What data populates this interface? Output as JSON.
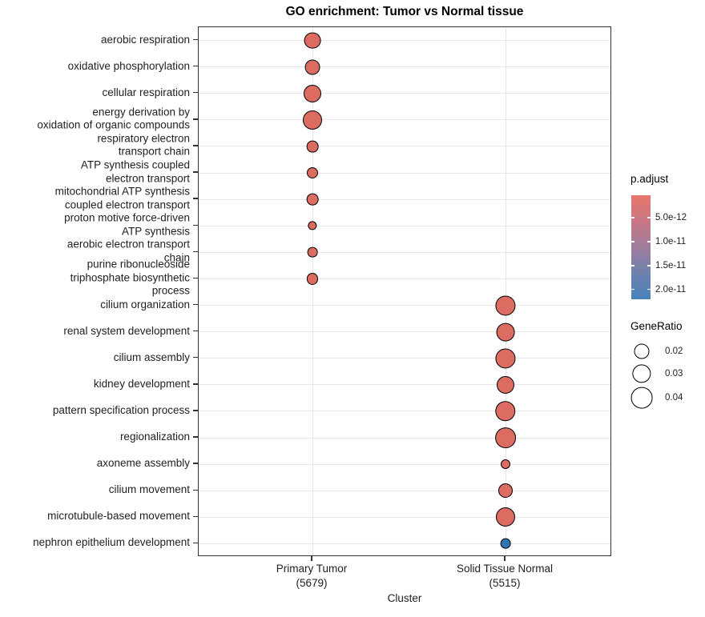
{
  "chart_data": {
    "type": "scatter",
    "subtype": "go-enrichment-dotplot",
    "title": "GO enrichment: Tumor vs Normal tissue",
    "xlabel": "Cluster",
    "ylabel": "",
    "grid": true,
    "x_categories": [
      {
        "label": "Primary Tumor",
        "sublabel": "(5679)"
      },
      {
        "label": "Solid Tissue Normal",
        "sublabel": "(5515)"
      }
    ],
    "y_categories": [
      {
        "label": "aerobic respiration",
        "display_lines": [
          "aerobic respiration"
        ]
      },
      {
        "label": "oxidative phosphorylation",
        "display_lines": [
          "oxidative phosphorylation"
        ]
      },
      {
        "label": "cellular respiration",
        "display_lines": [
          "cellular respiration"
        ]
      },
      {
        "label": "energy derivation by oxidation of organic compounds",
        "display_lines": [
          "energy derivation by",
          "oxidation of organic compounds"
        ]
      },
      {
        "label": "respiratory electron transport chain",
        "display_lines": [
          "respiratory electron",
          "transport chain"
        ]
      },
      {
        "label": "ATP synthesis coupled electron transport",
        "display_lines": [
          "ATP synthesis coupled",
          "electron transport"
        ]
      },
      {
        "label": "mitochondrial ATP synthesis coupled electron transport",
        "display_lines": [
          "mitochondrial ATP synthesis",
          "coupled electron transport"
        ]
      },
      {
        "label": "proton motive force-driven ATP synthesis",
        "display_lines": [
          "proton motive force-driven",
          "ATP synthesis"
        ]
      },
      {
        "label": "aerobic electron transport chain",
        "display_lines": [
          "aerobic electron transport",
          "chain"
        ]
      },
      {
        "label": "purine ribonucleoside triphosphate biosynthetic process",
        "display_lines": [
          "purine ribonucleoside",
          "triphosphate biosynthetic",
          "process"
        ]
      },
      {
        "label": "cilium organization",
        "display_lines": [
          "cilium organization"
        ]
      },
      {
        "label": "renal system development",
        "display_lines": [
          "renal system development"
        ]
      },
      {
        "label": "cilium assembly",
        "display_lines": [
          "cilium assembly"
        ]
      },
      {
        "label": "kidney development",
        "display_lines": [
          "kidney development"
        ]
      },
      {
        "label": "pattern specification process",
        "display_lines": [
          "pattern specification process"
        ]
      },
      {
        "label": "regionalization",
        "display_lines": [
          "regionalization"
        ]
      },
      {
        "label": "axoneme assembly",
        "display_lines": [
          "axoneme assembly"
        ]
      },
      {
        "label": "cilium movement",
        "display_lines": [
          "cilium movement"
        ]
      },
      {
        "label": "microtubule-based movement",
        "display_lines": [
          "microtubule-based movement"
        ]
      },
      {
        "label": "nephron epithelium development",
        "display_lines": [
          "nephron epithelium development"
        ]
      }
    ],
    "points": [
      {
        "term": "aerobic respiration",
        "term_index": 0,
        "cluster_index": 0,
        "gene_ratio": 0.024,
        "p_adjust_approx": "<5.0e-12",
        "color": "#DC6B62"
      },
      {
        "term": "oxidative phosphorylation",
        "term_index": 1,
        "cluster_index": 0,
        "gene_ratio": 0.02,
        "p_adjust_approx": "<5.0e-12",
        "color": "#DC6B62"
      },
      {
        "term": "cellular respiration",
        "term_index": 2,
        "cluster_index": 0,
        "gene_ratio": 0.027,
        "p_adjust_approx": "<5.0e-12",
        "color": "#DC6B62"
      },
      {
        "term": "energy derivation by oxidation of organic compounds",
        "term_index": 3,
        "cluster_index": 0,
        "gene_ratio": 0.032,
        "p_adjust_approx": "<5.0e-12",
        "color": "#DC6B62"
      },
      {
        "term": "respiratory electron transport chain",
        "term_index": 4,
        "cluster_index": 0,
        "gene_ratio": 0.012,
        "p_adjust_approx": "<5.0e-12",
        "color": "#DC6B62"
      },
      {
        "term": "ATP synthesis coupled electron transport",
        "term_index": 5,
        "cluster_index": 0,
        "gene_ratio": 0.011,
        "p_adjust_approx": "<5.0e-12",
        "color": "#DC6B62"
      },
      {
        "term": "mitochondrial ATP synthesis coupled electron transport",
        "term_index": 6,
        "cluster_index": 0,
        "gene_ratio": 0.012,
        "p_adjust_approx": "<5.0e-12",
        "color": "#DC6B62"
      },
      {
        "term": "proton motive force-driven ATP synthesis",
        "term_index": 7,
        "cluster_index": 0,
        "gene_ratio": 0.007,
        "p_adjust_approx": "<5.0e-12",
        "color": "#DC6B62"
      },
      {
        "term": "aerobic electron transport chain",
        "term_index": 8,
        "cluster_index": 0,
        "gene_ratio": 0.009,
        "p_adjust_approx": "<5.0e-12",
        "color": "#DC6B62"
      },
      {
        "term": "purine ribonucleoside triphosphate biosynthetic process",
        "term_index": 9,
        "cluster_index": 0,
        "gene_ratio": 0.011,
        "p_adjust_approx": "<5.0e-12",
        "color": "#DC6B62"
      },
      {
        "term": "cilium organization",
        "term_index": 10,
        "cluster_index": 1,
        "gene_ratio": 0.035,
        "p_adjust_approx": "<5.0e-12",
        "color": "#DC6B62"
      },
      {
        "term": "renal system development",
        "term_index": 11,
        "cluster_index": 1,
        "gene_ratio": 0.029,
        "p_adjust_approx": "<5.0e-12",
        "color": "#DC6B62"
      },
      {
        "term": "cilium assembly",
        "term_index": 12,
        "cluster_index": 1,
        "gene_ratio": 0.035,
        "p_adjust_approx": "<5.0e-12",
        "color": "#DC6B62"
      },
      {
        "term": "kidney development",
        "term_index": 13,
        "cluster_index": 1,
        "gene_ratio": 0.027,
        "p_adjust_approx": "<5.0e-12",
        "color": "#DC6B62"
      },
      {
        "term": "pattern specification process",
        "term_index": 14,
        "cluster_index": 1,
        "gene_ratio": 0.036,
        "p_adjust_approx": "<5.0e-12",
        "color": "#DC6B62"
      },
      {
        "term": "regionalization",
        "term_index": 15,
        "cluster_index": 1,
        "gene_ratio": 0.037,
        "p_adjust_approx": "<5.0e-12",
        "color": "#DC6B62"
      },
      {
        "term": "axoneme assembly",
        "term_index": 16,
        "cluster_index": 1,
        "gene_ratio": 0.008,
        "p_adjust_approx": "<5.0e-12",
        "color": "#DC6B62"
      },
      {
        "term": "cilium movement",
        "term_index": 17,
        "cluster_index": 1,
        "gene_ratio": 0.018,
        "p_adjust_approx": "<5.0e-12",
        "color": "#DC6B62"
      },
      {
        "term": "microtubule-based movement",
        "term_index": 18,
        "cluster_index": 1,
        "gene_ratio": 0.032,
        "p_adjust_approx": "<5.0e-12",
        "color": "#DC6B62"
      },
      {
        "term": "nephron epithelium development",
        "term_index": 19,
        "cluster_index": 1,
        "gene_ratio": 0.009,
        "p_adjust_approx": "~2.0e-11",
        "color": "#2E75B2"
      }
    ],
    "legends": {
      "p_adjust": {
        "title": "p.adjust",
        "tick_labels": [
          "5.0e-12",
          "1.0e-11",
          "1.5e-11",
          "2.0e-11"
        ],
        "gradient_stops": [
          "#E8756C",
          "#C97884",
          "#9E7C9C",
          "#6E81AE",
          "#4B82BA"
        ]
      },
      "gene_ratio": {
        "title": "GeneRatio",
        "items": [
          {
            "label": "0.02",
            "value": 0.02
          },
          {
            "label": "0.03",
            "value": 0.03
          },
          {
            "label": "0.04",
            "value": 0.04
          }
        ]
      }
    },
    "colors": {
      "dot_red": "#DC6B62",
      "dot_blue": "#2E75B2",
      "panel_border": "#333333",
      "gridline": "#E7E7E7"
    }
  }
}
